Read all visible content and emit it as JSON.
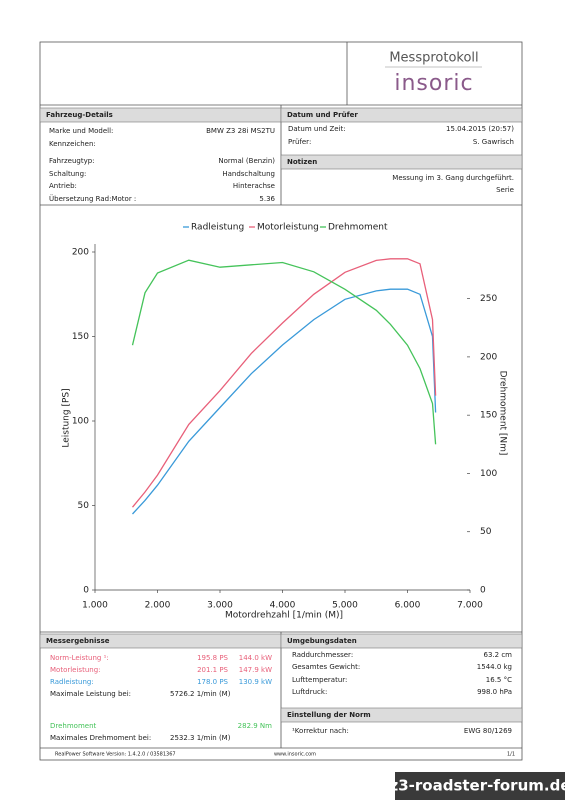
{
  "header": {
    "title": "Messprotokoll",
    "logo": "insoric"
  },
  "vehicle": {
    "title": "Fahrzeug-Details",
    "rows": [
      [
        "Marke und Modell:",
        "BMW Z3 28i MS2TU"
      ],
      [
        "Kennzeichen:"
      ],
      [
        "Fahrzeugtyp:",
        "Normal (Benzin)"
      ],
      [
        "Schaltung:",
        "Handschaltung"
      ],
      [
        "Antrieb:",
        "Hinterachse"
      ],
      [
        "Übersetzung Rad:Motor :",
        "5.36"
      ]
    ]
  },
  "date": {
    "title": "Datum und Prüfer",
    "rows": [
      [
        "Datum und Zeit:",
        "15.04.2015 (20:57)"
      ],
      [
        "Prüfer:",
        "S. Gawrisch"
      ]
    ]
  },
  "notes": {
    "title": "Notizen",
    "lines": [
      "Messung im 3. Gang durchgeführt.",
      "Serie"
    ]
  },
  "chart_data": {
    "type": "line",
    "xlabel": "Motordrehzahl [1/min (M)]",
    "ylabel": "Leistung [PS]",
    "y2label": "Drehmoment [Nm]",
    "x": [
      1600,
      1800,
      2000,
      2500,
      3000,
      3500,
      4000,
      4500,
      5000,
      5500,
      5726,
      6000,
      6200,
      6400,
      6450
    ],
    "series": [
      {
        "name": "Radleistung",
        "color": "#3a9ad9",
        "values": [
          45,
          53,
          62,
          88,
          108,
          128,
          145,
          160,
          172,
          177,
          178,
          178,
          175,
          150,
          105
        ]
      },
      {
        "name": "Motorleistung",
        "color": "#e8607a",
        "values": [
          49,
          58,
          68,
          98,
          118,
          140,
          158,
          175,
          188,
          195,
          196,
          196,
          193,
          160,
          115
        ]
      },
      {
        "name": "Drehmoment",
        "color": "#45c35a",
        "axis": "y2",
        "values": [
          210,
          255,
          272,
          283,
          277,
          279,
          281,
          273,
          258,
          240,
          228,
          210,
          190,
          160,
          125
        ]
      }
    ],
    "xlim": [
      1000,
      7000
    ],
    "xticks": [
      {
        "value": 1000,
        "label": "1.000"
      },
      {
        "value": 2000,
        "label": "2.000"
      },
      {
        "value": 3000,
        "label": "3.000"
      },
      {
        "value": 4000,
        "label": "4.000"
      },
      {
        "value": 5000,
        "label": "5.000"
      },
      {
        "value": 6000,
        "label": "6.000"
      },
      {
        "value": 7000,
        "label": "7.000"
      }
    ],
    "ylim": [
      0,
      200
    ],
    "yticks": [
      0,
      50,
      100,
      150,
      200
    ],
    "y2lim": [
      0,
      290
    ],
    "y2ticks": [
      0,
      50,
      100,
      150,
      200,
      250
    ],
    "grid": false
  },
  "results": {
    "title": "Messergebnisse",
    "rows": [
      [
        "Norm-Leistung ¹:",
        "195.8 PS",
        "144.0 kW"
      ],
      [
        "Motorleistung:",
        "201.1 PS",
        "147.9 kW"
      ],
      [
        "Radleistung:",
        "178.0 PS",
        "130.9 kW"
      ],
      [
        "Maximale Leistung bei:",
        "5726.2 1/min (M)"
      ],
      [
        "Drehmoment",
        "282.9 Nm"
      ],
      [
        "Maximales Drehmoment bei:",
        "2532.3 1/min (M)"
      ]
    ]
  },
  "environment": {
    "title": "Umgebungsdaten",
    "rows": [
      [
        "Raddurchmesser:",
        "63.2 cm"
      ],
      [
        "Gesamtes Gewicht:",
        "1544.0 kg"
      ],
      [
        "Lufttemperatur:",
        "16.5 °C"
      ],
      [
        "Luftdruck:",
        "998.0 hPa"
      ]
    ]
  },
  "norm": {
    "title": "Einstellung der Norm",
    "rows": [
      [
        "¹Korrektur nach:",
        "EWG 80/1269"
      ]
    ]
  },
  "footer": {
    "software": "RealPower Software Version: 1.4.2.0 / 03581367",
    "url": "www.insoric.com",
    "page": "1/1"
  },
  "watermark": "z3-roadster-forum.de"
}
